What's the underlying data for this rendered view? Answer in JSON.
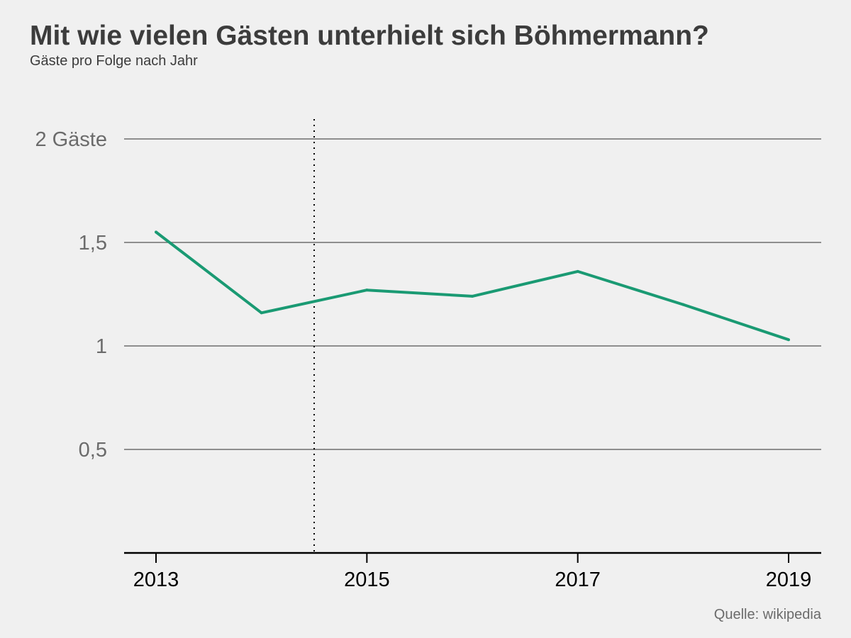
{
  "header": {
    "title": "Mit wie vielen Gästen unterhielt sich Böhmermann?",
    "subtitle": "Gäste pro Folge nach Jahr"
  },
  "footer": {
    "source": "Quelle: wikipedia"
  },
  "chart_data": {
    "type": "line",
    "title": "Mit wie vielen Gästen unterhielt sich Böhmermann?",
    "subtitle": "Gäste pro Folge nach Jahr",
    "xlabel": "",
    "ylabel": "",
    "x": [
      2013,
      2014,
      2015,
      2016,
      2017,
      2018,
      2019
    ],
    "series": [
      {
        "values": [
          1.55,
          1.16,
          1.27,
          1.24,
          1.36,
          1.2,
          1.03
        ],
        "color": "#1a9a73"
      }
    ],
    "xlim": [
      2012.85,
      2019.15
    ],
    "ylim": [
      0,
      2.1
    ],
    "yticks": [
      0.5,
      1,
      1.5,
      2
    ],
    "ytick_labels": [
      "0,5",
      "1",
      "1,5",
      "2 Gäste"
    ],
    "xticks": [
      2013,
      2015,
      2017,
      2019
    ],
    "xtick_labels": [
      "2013",
      "2015",
      "2017",
      "2019"
    ],
    "reference_line_x": 2014.5,
    "grid": true,
    "gridline_color": "#6e6e6e",
    "axis_color": "#000000",
    "source": "Quelle: wikipedia"
  }
}
